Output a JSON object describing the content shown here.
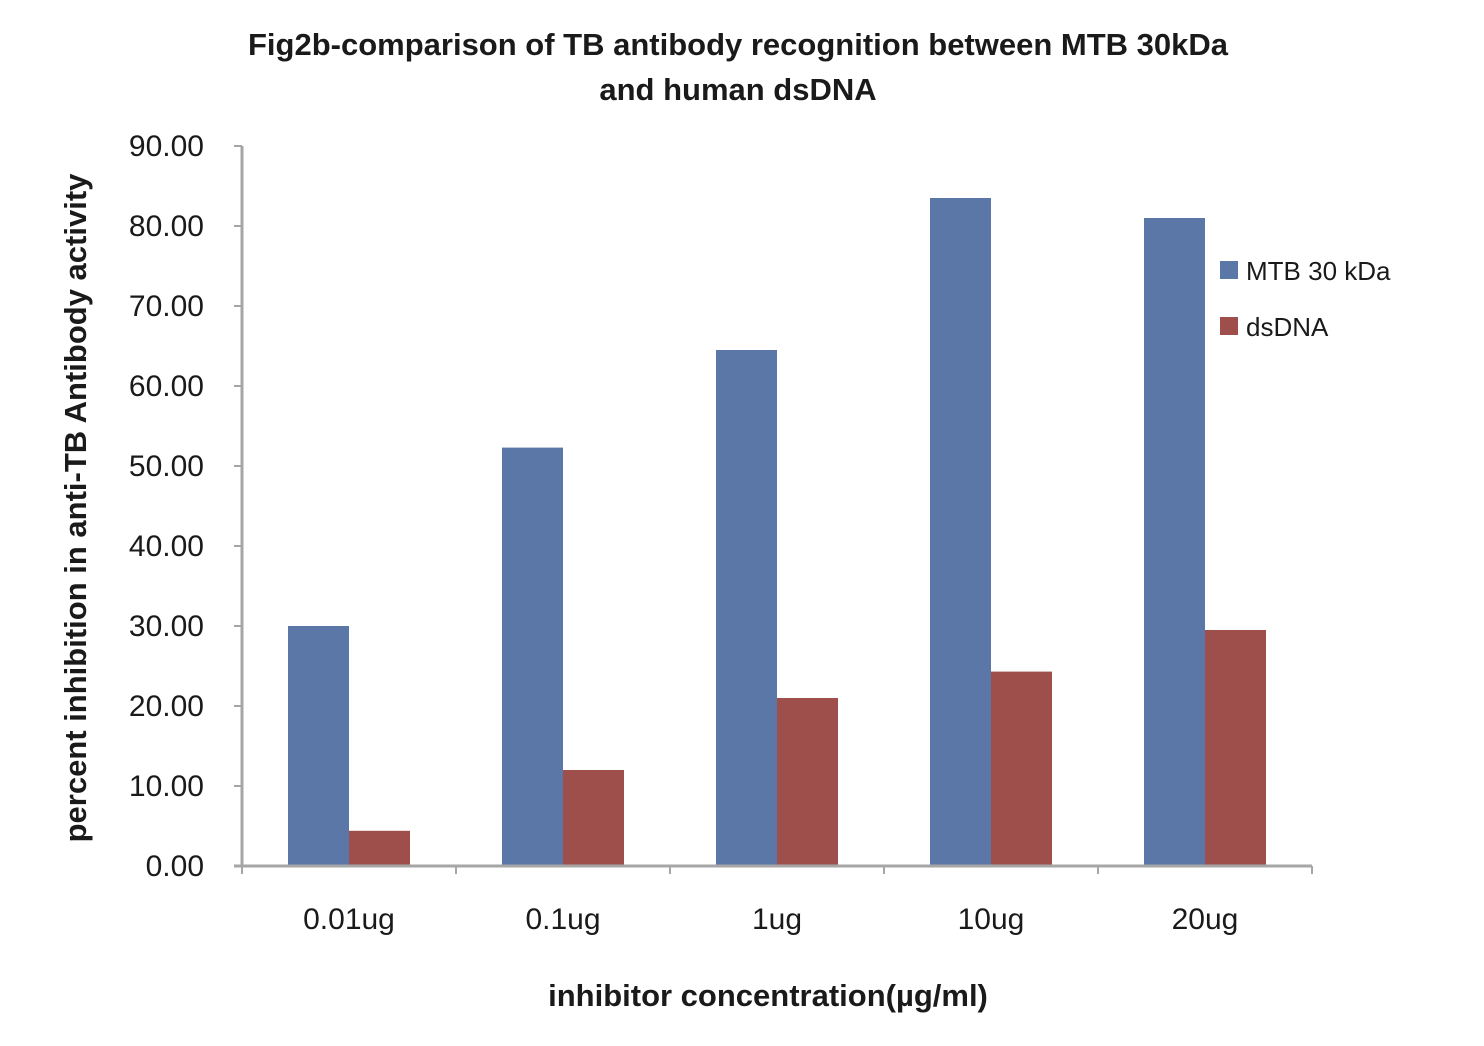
{
  "chart_data": {
    "type": "bar",
    "title": "Fig2b-comparison of TB antibody recognition between MTB 30kDa and human dsDNA",
    "title_lines": [
      "Fig2b-comparison of TB antibody recognition between MTB 30kDa",
      "and human dsDNA"
    ],
    "xlabel": "inhibitor concentration(µg/ml)",
    "ylabel": "percent inhibition in anti-TB Antibody activity",
    "categories": [
      "0.01ug",
      "0.1ug",
      "1ug",
      "10ug",
      "20ug"
    ],
    "series": [
      {
        "name": "MTB 30 kDa",
        "color": "#5b77a8",
        "values": [
          30.0,
          52.3,
          64.5,
          83.5,
          81.0
        ]
      },
      {
        "name": "dsDNA",
        "color": "#9e4f4b",
        "values": [
          4.4,
          12.0,
          21.0,
          24.3,
          29.5
        ]
      }
    ],
    "ylim": [
      0,
      90
    ],
    "yticks": [
      "0.00",
      "10.00",
      "20.00",
      "30.00",
      "40.00",
      "50.00",
      "60.00",
      "70.00",
      "80.00",
      "90.00"
    ],
    "grid": false,
    "legend": "right",
    "axis_color": "#a6a6a6"
  }
}
